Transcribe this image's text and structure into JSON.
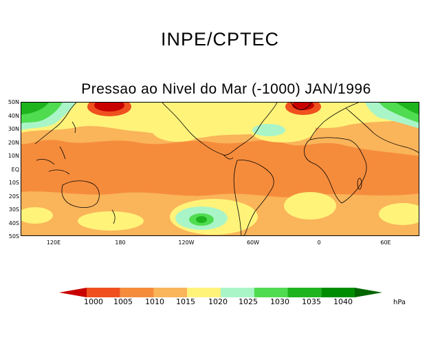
{
  "header": {
    "org_title": "INPE/CPTEC"
  },
  "map": {
    "title": "Pressao ao Nivel do Mar (-1000) JAN/1996",
    "lat_labels": [
      "50N",
      "40N",
      "30N",
      "20N",
      "10N",
      "EQ",
      "10S",
      "20S",
      "30S",
      "40S",
      "50S"
    ],
    "lon_labels": [
      "120E",
      "180",
      "120W",
      "60W",
      "0",
      "60E"
    ],
    "unit": "hPa"
  },
  "colorbar": {
    "levels": [
      "1000",
      "1005",
      "1010",
      "1015",
      "1020",
      "1025",
      "1030",
      "1035",
      "1040"
    ],
    "colors": [
      "#c80000",
      "#f0501e",
      "#f58c3c",
      "#fab45a",
      "#fff37a",
      "#aaf5c8",
      "#50dc50",
      "#1eb41e",
      "#008c00",
      "#006400"
    ]
  }
}
